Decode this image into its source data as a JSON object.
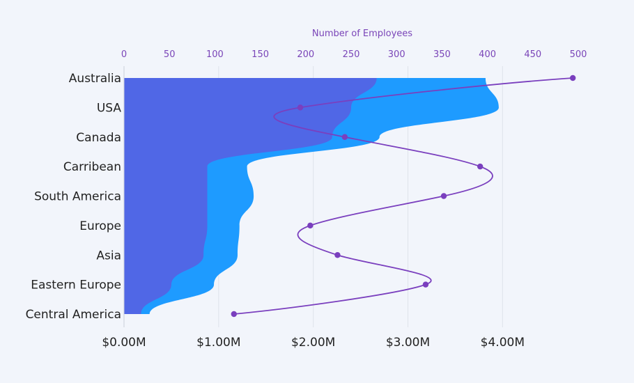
{
  "chart_data": {
    "type": "area",
    "categories": [
      "Australia",
      "USA",
      "Canada",
      "Carribean",
      "South America",
      "Europe",
      "Asia",
      "Eastern Europe",
      "Central America"
    ],
    "x_bottom": {
      "label": "",
      "min": 0,
      "max": 4.8,
      "ticks": [
        0,
        1,
        2,
        3,
        4
      ],
      "tick_labels": [
        "$0.00M",
        "$1.00M",
        "$2.00M",
        "$3.00M",
        "$4.00M"
      ]
    },
    "x_top": {
      "label": "Number of Employees",
      "min": 0,
      "max": 500,
      "ticks": [
        0,
        50,
        100,
        150,
        200,
        250,
        300,
        350,
        400,
        450,
        500
      ],
      "tick_labels": [
        "0",
        "50",
        "100",
        "150",
        "200",
        "250",
        "300",
        "350",
        "400",
        "450",
        "500"
      ]
    },
    "series": [
      {
        "name": "",
        "type": "area",
        "axis": "bottom",
        "color": "#1e9bff",
        "values": [
          3.82,
          3.96,
          2.7,
          1.3,
          1.37,
          1.22,
          1.2,
          0.95,
          0.27
        ]
      },
      {
        "name": "",
        "type": "area",
        "axis": "bottom",
        "color": "#5067e6",
        "values": [
          2.67,
          2.4,
          2.2,
          0.88,
          0.88,
          0.88,
          0.84,
          0.5,
          0.18
        ]
      },
      {
        "name": "",
        "type": "line",
        "axis": "top",
        "color": "#7a3fbe",
        "values": [
          494,
          194,
          243,
          392,
          352,
          205,
          235,
          332,
          121
        ]
      }
    ],
    "grid": true,
    "legend": "none"
  }
}
